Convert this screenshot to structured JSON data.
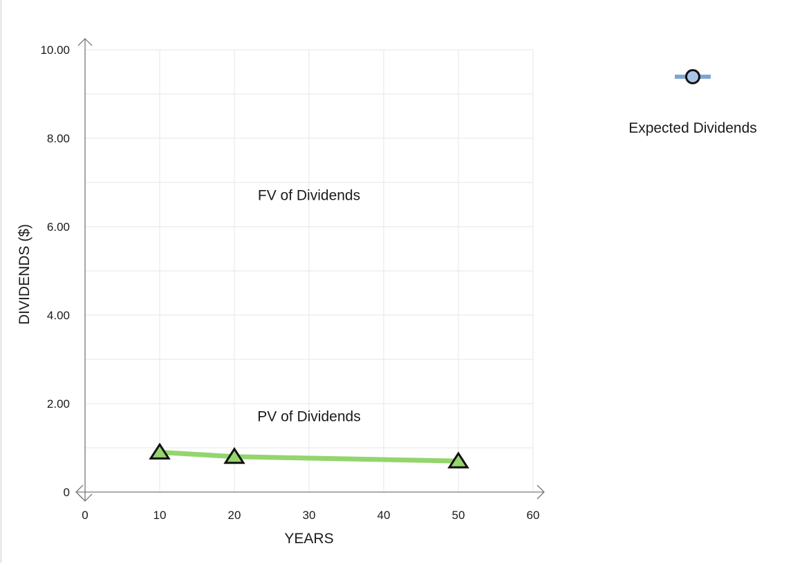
{
  "chart_data": {
    "type": "line",
    "title": "",
    "xlabel": "YEARS",
    "ylabel": "DIVIDENDS ($)",
    "xlim": [
      0,
      60
    ],
    "ylim": [
      0,
      10
    ],
    "x_ticks": [
      0,
      10,
      20,
      30,
      40,
      50,
      60
    ],
    "x_tick_labels": [
      "0",
      "10",
      "20",
      "30",
      "40",
      "50",
      "60"
    ],
    "y_ticks": [
      0,
      2,
      4,
      6,
      8,
      10
    ],
    "y_tick_labels": [
      "0",
      "2.00",
      "4.00",
      "6.00",
      "8.00",
      "10.00"
    ],
    "grid": true,
    "series": [
      {
        "name": "PV of Dividends",
        "color": "#94d56e",
        "marker": "triangle",
        "marker_fill": "#94d56e",
        "x": [
          10,
          20,
          50
        ],
        "y": [
          0.9,
          0.8,
          0.7
        ]
      }
    ],
    "annotations": [
      {
        "text": "FV of Dividends",
        "x": 30,
        "y": 6.6
      },
      {
        "text": "PV of Dividends",
        "x": 30,
        "y": 1.6
      }
    ],
    "legend": {
      "placement": "top-right",
      "entries": [
        {
          "label": "Expected Dividends",
          "marker": "circle",
          "line_color": "#7fa6d2",
          "marker_fill": "#a9c4e4"
        }
      ]
    }
  }
}
